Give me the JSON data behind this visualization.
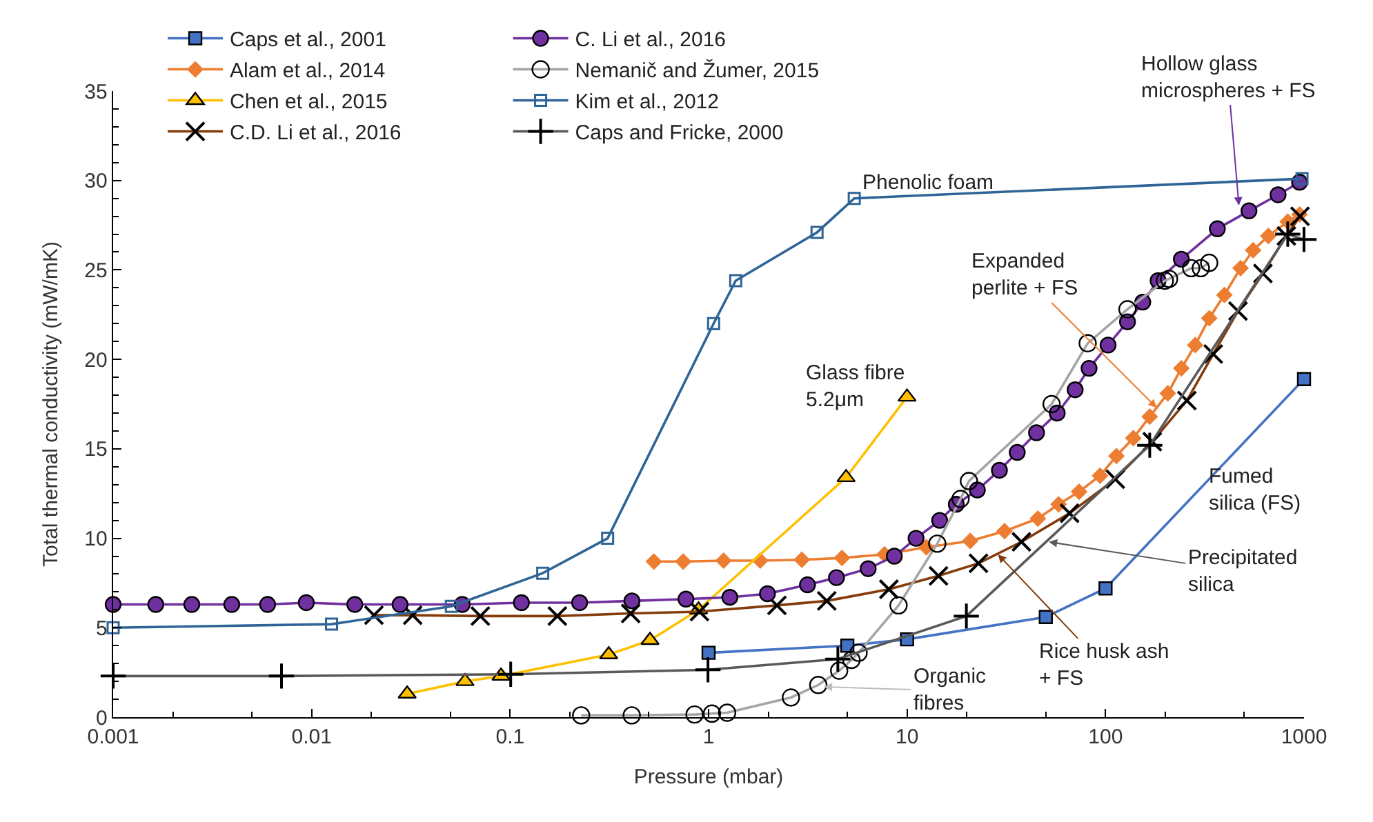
{
  "chart_data": {
    "type": "line",
    "xlabel": "Pressure (mbar)",
    "ylabel": "Total thermal conductivity (mW/mK)",
    "log": "x",
    "xlim": [
      0.001,
      1000
    ],
    "xticks": [
      0.001,
      0.01,
      0.1,
      1,
      10,
      100,
      1000
    ],
    "ylim": [
      0,
      35
    ],
    "yticks": [
      0,
      5,
      10,
      15,
      20,
      25,
      30,
      35
    ],
    "legend": "top left",
    "series": [
      {
        "name": "Caps et al., 2001",
        "color": "#4472c4",
        "marker": "square",
        "x": [
          1,
          5,
          10,
          50,
          100,
          1000
        ],
        "values": [
          3.6,
          4.0,
          4.35,
          5.6,
          7.2,
          18.9
        ]
      },
      {
        "name": "Alam et al., 2014",
        "color": "#ed7d31",
        "marker": "diamond",
        "x": [
          0.53,
          0.745,
          1.19,
          1.82,
          2.95,
          4.7,
          7.7,
          12.5,
          20.8,
          31,
          45.6,
          58,
          73.6,
          93.8,
          113.5,
          138,
          167,
          206,
          241,
          283,
          333,
          397,
          479,
          554,
          661,
          828,
          950
        ],
        "values": [
          8.7,
          8.7,
          8.75,
          8.75,
          8.8,
          8.9,
          9.1,
          9.5,
          9.85,
          10.4,
          11.1,
          11.9,
          12.6,
          13.5,
          14.6,
          15.6,
          16.8,
          18.1,
          19.5,
          20.8,
          22.3,
          23.6,
          25.1,
          26.1,
          26.9,
          27.7,
          28.1
        ]
      },
      {
        "name": "Chen et al., 2015",
        "color": "#ffc000",
        "marker": "triangle",
        "x": [
          0.0303,
          0.0593,
          0.09,
          0.314,
          0.507,
          0.89,
          4.93,
          10
        ],
        "values": [
          1.3,
          2.0,
          2.3,
          3.5,
          4.3,
          6.0,
          13.4,
          17.9
        ]
      },
      {
        "name": "C.D. Li et al., 2016",
        "color": "#843c0c",
        "marker": "x",
        "x": [
          0.0206,
          0.0323,
          0.0708,
          0.173,
          0.405,
          0.9,
          2.21,
          3.94,
          8.1,
          14.4,
          22.9,
          37.7,
          65.9,
          112,
          172,
          257,
          349,
          465,
          621,
          815,
          955
        ],
        "values": [
          5.7,
          5.7,
          5.65,
          5.65,
          5.8,
          5.9,
          6.25,
          6.5,
          7.15,
          7.9,
          8.6,
          9.8,
          11.4,
          13.3,
          15.4,
          17.7,
          20.3,
          22.7,
          24.8,
          26.9,
          28.0
        ]
      },
      {
        "name": "C. Li et al., 2016",
        "color": "#7030a0",
        "marker": "circle",
        "x": [
          0.001,
          0.00164,
          0.00249,
          0.00396,
          0.006,
          0.0094,
          0.0165,
          0.0279,
          0.0574,
          0.114,
          0.224,
          0.411,
          0.769,
          1.28,
          1.98,
          3.15,
          4.41,
          6.37,
          8.63,
          11.1,
          14.6,
          17.7,
          22.6,
          29.2,
          35.9,
          44.9,
          57.1,
          70.3,
          82.6,
          103,
          129,
          154,
          184,
          241,
          366,
          528,
          740,
          950
        ],
        "values": [
          6.3,
          6.3,
          6.3,
          6.3,
          6.3,
          6.4,
          6.3,
          6.3,
          6.3,
          6.4,
          6.4,
          6.5,
          6.6,
          6.7,
          6.9,
          7.4,
          7.8,
          8.3,
          9.0,
          10.0,
          11.0,
          11.9,
          12.7,
          13.8,
          14.8,
          15.9,
          17.0,
          18.3,
          19.5,
          20.8,
          22.1,
          23.2,
          24.4,
          25.6,
          27.3,
          28.3,
          29.2,
          29.9
        ]
      },
      {
        "name": "Nemanič and Žumer, 2015",
        "color": "#a5a5a5",
        "marker": "circle",
        "x": [
          0.228,
          0.41,
          0.85,
          1.04,
          1.24,
          2.6,
          3.57,
          4.55,
          5.25,
          5.7,
          9.06,
          14.2,
          18.6,
          20.5,
          53.5,
          81.3,
          129,
          199,
          209,
          270,
          302,
          333
        ],
        "values": [
          0.1,
          0.1,
          0.15,
          0.2,
          0.25,
          1.1,
          1.8,
          2.6,
          3.2,
          3.6,
          6.25,
          9.7,
          12.2,
          13.2,
          17.5,
          20.9,
          22.8,
          24.4,
          24.5,
          25.1,
          25.1,
          25.4
        ]
      },
      {
        "name": "Kim et al., 2012",
        "color": "#2e6496",
        "marker": "square",
        "x": [
          0.001,
          0.0126,
          0.0506,
          0.146,
          0.31,
          1.06,
          1.37,
          3.52,
          5.42,
          977
        ],
        "values": [
          5.0,
          5.2,
          6.2,
          8.05,
          10.0,
          22.0,
          24.4,
          27.1,
          29.0,
          30.1
        ]
      },
      {
        "name": "Caps and Fricke, 2000",
        "color": "#595959",
        "marker": "cross",
        "x": [
          0.001,
          0.00705,
          0.1007,
          0.993,
          4.48,
          19.9,
          167,
          828,
          1000
        ],
        "values": [
          2.3,
          2.3,
          2.4,
          2.65,
          3.25,
          5.65,
          15.2,
          27.0,
          26.7
        ]
      }
    ],
    "annotations": [
      "Phenolic foam",
      {
        "text": "Hollow glass\nmicrospheres + FS",
        "x": 470,
        "y": 28.6
      },
      {
        "text": "Expanded\nperlite + FS",
        "x": 181,
        "y": 17.3
      },
      "Glass fibre\n5.2μm",
      "Fumed\nsilica (FS)",
      {
        "text": "Precipitated\nsilica",
        "x": 51.8,
        "y": 9.8
      },
      {
        "text": "Rice husk ash\n+ FS",
        "x": 28.7,
        "y": 9.1
      },
      {
        "text": "Organic\nfibres",
        "x": 3.81,
        "y": 1.7
      }
    ]
  }
}
